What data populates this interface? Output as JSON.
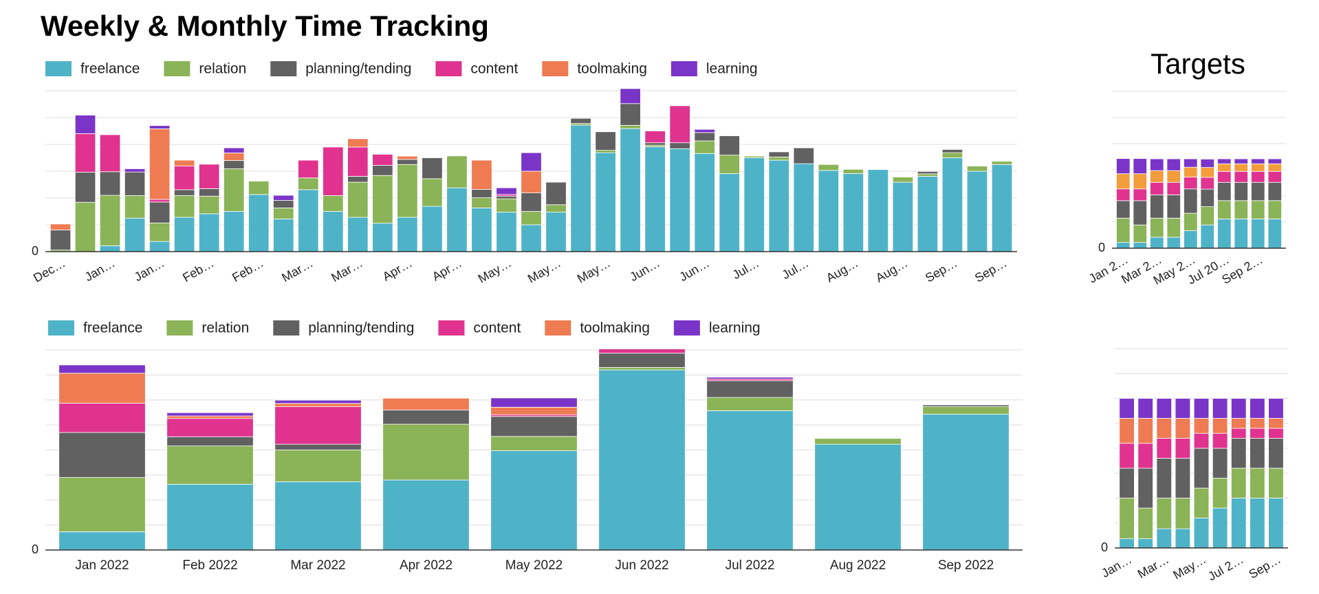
{
  "title": "Weekly & Monthly Time Tracking",
  "chart_data": [
    {
      "type": "bar",
      "stacked": true,
      "categories": [
        "Dec…",
        null,
        "Jan…",
        null,
        "Jan…",
        null,
        "Feb…",
        null,
        "Feb…",
        null,
        "Mar…",
        null,
        "Mar…",
        null,
        "Apr…",
        null,
        "Apr…",
        null,
        "May…",
        null,
        "May…",
        null,
        "May…",
        null,
        "Jun…",
        null,
        "Jun…",
        null,
        "Jul…",
        null,
        "Jul…",
        null,
        "Aug…",
        null,
        "Aug…",
        null,
        "Sep…",
        null,
        "Sep…"
      ],
      "series": [
        {
          "name": "freelance",
          "color": "#4fb3c8",
          "values": [
            0,
            0,
            2.2,
            12.5,
            3.8,
            12.8,
            14.1,
            15,
            21.3,
            12.2,
            23.1,
            15,
            12.8,
            10.6,
            12.8,
            16.9,
            23.8,
            16.3,
            14.7,
            10,
            14.7,
            47.2,
            36.9,
            45.9,
            39.1,
            38.4,
            36.6,
            29.1,
            35,
            34.1,
            32.8,
            30.3,
            29.1,
            30.6,
            25.9,
            28.1,
            35,
            30,
            32.5
          ]
        },
        {
          "name": "relation",
          "color": "#8bb357",
          "values": [
            0.6,
            18.4,
            18.8,
            8.4,
            6.9,
            8.1,
            6.6,
            15.9,
            5,
            4.1,
            4.4,
            5.9,
            13.1,
            17.8,
            19.7,
            10.3,
            11.9,
            3.8,
            5,
            5,
            2.8,
            0.6,
            0.9,
            1.2,
            0.6,
            0,
            4.7,
            6.9,
            0.6,
            1.2,
            0,
            2.2,
            1.6,
            0,
            1.9,
            0.9,
            1.9,
            1.9,
            1.2
          ]
        },
        {
          "name": "planning/tending",
          "color": "#616161",
          "values": [
            7.5,
            11.2,
            8.8,
            8.8,
            7.8,
            2.2,
            2.8,
            3.1,
            0,
            2.8,
            0,
            0,
            2.2,
            3.8,
            1.9,
            7.8,
            0,
            3.1,
            1,
            6.9,
            8.4,
            1.9,
            6.9,
            8.1,
            0.9,
            2.2,
            3.1,
            7.2,
            0,
            1.9,
            5.9,
            0,
            0,
            0,
            0,
            0.9,
            1.2,
            0,
            0
          ]
        },
        {
          "name": "content",
          "color": "#e0338f",
          "values": [
            0,
            14.4,
            13.8,
            0,
            1,
            8.8,
            9.1,
            0,
            0,
            0,
            6.6,
            18.1,
            10.9,
            4.1,
            0,
            0,
            0,
            0,
            0.6,
            0,
            0,
            0,
            0,
            0,
            4.4,
            13.8,
            0,
            0,
            0,
            0,
            0,
            0,
            0,
            0,
            0,
            0,
            0,
            0,
            0
          ]
        },
        {
          "name": "toolmaking",
          "color": "#ef7b52",
          "values": [
            2.2,
            0,
            0,
            0,
            26.3,
            2.2,
            0,
            2.8,
            0,
            0,
            0,
            0,
            3.1,
            0,
            1.2,
            0,
            0,
            10.9,
            0,
            8.1,
            0,
            0,
            0,
            0,
            0,
            0,
            0,
            0,
            0,
            0,
            0,
            0,
            0,
            0,
            0,
            0,
            0,
            0,
            0
          ]
        },
        {
          "name": "learning",
          "color": "#7a35c8",
          "values": [
            0,
            6.9,
            0,
            1.2,
            1.2,
            0,
            0,
            1.9,
            0,
            1.9,
            0,
            0,
            0,
            0,
            0,
            0,
            0,
            0,
            2.5,
            6.9,
            0,
            0,
            0,
            5.6,
            0,
            0,
            1.2,
            0,
            0,
            0,
            0,
            0,
            0,
            0,
            0,
            0,
            0,
            0,
            0
          ]
        }
      ],
      "ylim": [
        0,
        60
      ],
      "yticks": [
        0
      ],
      "ygrid": [
        0,
        10,
        20,
        30,
        40,
        50,
        60
      ]
    },
    {
      "type": "bar",
      "stacked": true,
      "categories": [
        "Jan 2022",
        "Feb 2022",
        "Mar 2022",
        "Apr 2022",
        "May 2022",
        "Jun 2022",
        "Jul 2022",
        "Aug 2022",
        "Sep 2022"
      ],
      "series": [
        {
          "name": "freelance",
          "color": "#4fb3c8",
          "values": [
            7.3,
            26.3,
            27.3,
            28,
            39.7,
            72,
            55.7,
            42.3,
            54.3
          ]
        },
        {
          "name": "relation",
          "color": "#8bb357",
          "values": [
            21.7,
            15.3,
            12.7,
            22.3,
            5.7,
            1,
            5.3,
            2.3,
            3
          ]
        },
        {
          "name": "planning/tending",
          "color": "#616161",
          "values": [
            18,
            3.7,
            2.3,
            5.7,
            8,
            5.7,
            6.7,
            0,
            0.7
          ]
        },
        {
          "name": "content",
          "color": "#e0338f",
          "values": [
            11.7,
            7.3,
            15,
            0,
            0.7,
            1.7,
            0.7,
            0,
            0
          ]
        },
        {
          "name": "toolmaking",
          "color": "#ef7b52",
          "values": [
            12,
            1,
            1.3,
            4.7,
            3,
            0,
            0,
            0,
            0
          ]
        },
        {
          "name": "learning",
          "color": "#7a35c8",
          "values": [
            3.3,
            1.3,
            1.3,
            0,
            3.7,
            0,
            0.7,
            0,
            0
          ]
        }
      ],
      "ylim": [
        0,
        80
      ],
      "yticks": [
        0
      ],
      "ygrid": [
        0,
        10,
        20,
        30,
        40,
        50,
        60,
        70,
        80
      ]
    },
    {
      "type": "bar",
      "stacked": true,
      "title": "Targets",
      "categories": [
        "Jan 2…",
        null,
        "Mar 2…",
        null,
        "May 2…",
        null,
        "Jul 20…",
        null,
        "Sep 2…",
        null
      ],
      "series": [
        {
          "color": "#4fb3c8",
          "values": [
            2.2,
            2.2,
            4.2,
            4.2,
            6.7,
            8.9,
            11.2,
            11.2,
            11.2,
            11.2
          ]
        },
        {
          "color": "#8bb357",
          "values": [
            9.3,
            6.7,
            7.3,
            7.3,
            6.7,
            7,
            7,
            7,
            7,
            7
          ]
        },
        {
          "color": "#616161",
          "values": [
            6.7,
            9.3,
            8.9,
            8.9,
            9.3,
            6.7,
            7,
            7,
            7,
            7
          ]
        },
        {
          "color": "#e0338f",
          "values": [
            4.5,
            4.5,
            4.8,
            4.8,
            4.5,
            4.5,
            4.2,
            4.2,
            4.2,
            4.2
          ]
        },
        {
          "color": "#f39c3c",
          "values": [
            5.8,
            5.8,
            4.5,
            4.5,
            3.8,
            3.8,
            2.9,
            2.9,
            2.9,
            2.9
          ]
        },
        {
          "color": "#7a35c8",
          "values": [
            5.8,
            5.8,
            4.5,
            4.5,
            3.2,
            3.2,
            1.9,
            1.9,
            1.9,
            1.9
          ]
        }
      ],
      "ylim": [
        0,
        60
      ],
      "yticks": [
        0
      ],
      "ygrid": [
        0,
        10,
        20,
        30,
        40,
        50,
        60
      ]
    },
    {
      "type": "bar",
      "stacked": true,
      "categories": [
        "Jan…",
        null,
        "Mar…",
        null,
        "May…",
        null,
        "Jul 2…",
        null,
        "Sep…"
      ],
      "series": [
        {
          "color": "#4fb3c8",
          "values": [
            3.7,
            3.7,
            7.7,
            7.7,
            12,
            16,
            20,
            20,
            20
          ]
        },
        {
          "color": "#8bb357",
          "values": [
            16.3,
            12.3,
            12.3,
            12.3,
            12,
            12,
            12,
            12,
            12
          ]
        },
        {
          "color": "#616161",
          "values": [
            12,
            16,
            16,
            16,
            16,
            12,
            12,
            12,
            12
          ]
        },
        {
          "color": "#e0338f",
          "values": [
            10,
            10,
            8,
            8,
            6,
            6,
            4,
            4,
            4
          ]
        },
        {
          "color": "#ef7b52",
          "values": [
            10,
            10,
            8,
            8,
            6,
            6,
            4,
            4,
            4
          ]
        },
        {
          "color": "#7a35c8",
          "values": [
            8,
            8,
            8,
            8,
            8,
            8,
            8,
            8,
            8
          ]
        }
      ],
      "ylim": [
        0,
        80
      ],
      "yticks": [
        0
      ],
      "ygrid": [
        0,
        10,
        20,
        30,
        40,
        50,
        60,
        70,
        80
      ]
    }
  ]
}
